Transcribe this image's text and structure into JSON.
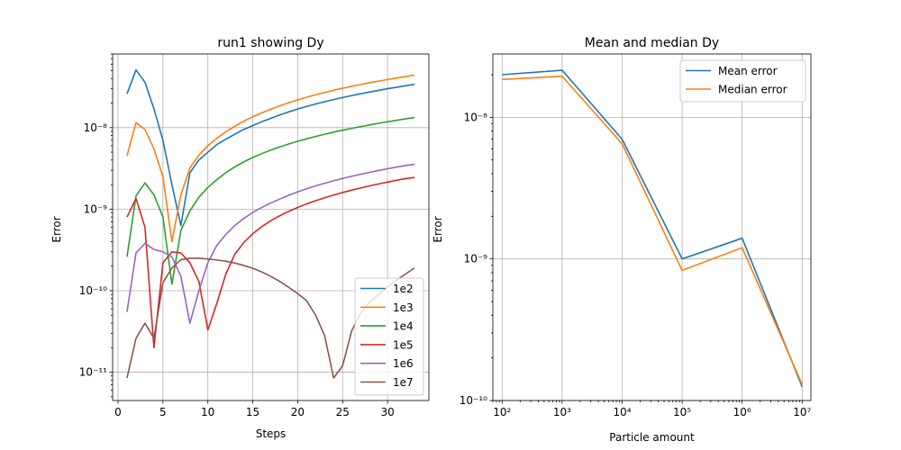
{
  "chart_data": [
    {
      "type": "line",
      "title": "run1 showing Dy",
      "xlabel": "Steps",
      "ylabel": "Error",
      "yscale": "log",
      "xlim": [
        -0.6,
        34.6
      ],
      "ylim": [
        4.5e-12,
        8e-08
      ],
      "xticks": [
        0,
        5,
        10,
        15,
        20,
        25,
        30
      ],
      "yticks": [
        1e-11,
        1e-10,
        1e-09,
        1e-08
      ],
      "ytick_labels": [
        "10⁻¹¹",
        "10⁻¹⁰",
        "10⁻⁹",
        "10⁻⁸"
      ],
      "grid": true,
      "legend_position": "lower-right",
      "x": [
        1,
        2,
        3,
        4,
        5,
        6,
        7,
        8,
        9,
        10,
        11,
        12,
        13,
        14,
        15,
        16,
        17,
        18,
        19,
        20,
        21,
        22,
        23,
        24,
        25,
        26,
        27,
        28,
        29,
        30,
        31,
        32,
        33
      ],
      "series": [
        {
          "name": "1e2",
          "color": "#1f77b4",
          "values": [
            2.6e-08,
            5.1e-08,
            3.6e-08,
            1.7e-08,
            7e-09,
            2e-09,
            6.3e-10,
            2.8e-09,
            4e-09,
            5e-09,
            6.2e-09,
            7.2e-09,
            8.3e-09,
            9.5e-09,
            1.06e-08,
            1.18e-08,
            1.3e-08,
            1.43e-08,
            1.56e-08,
            1.69e-08,
            1.82e-08,
            1.95e-08,
            2.08e-08,
            2.21e-08,
            2.34e-08,
            2.47e-08,
            2.6e-08,
            2.73e-08,
            2.86e-08,
            3e-08,
            3.13e-08,
            3.26e-08,
            3.4e-08
          ]
        },
        {
          "name": "1e3",
          "color": "#ff7f0e",
          "values": [
            4.5e-09,
            1.15e-08,
            9.5e-09,
            5.5e-09,
            2.5e-09,
            4e-10,
            1.5e-09,
            3.2e-09,
            4.6e-09,
            6e-09,
            7.4e-09,
            8.9e-09,
            1.04e-08,
            1.2e-08,
            1.36e-08,
            1.52e-08,
            1.68e-08,
            1.85e-08,
            2.02e-08,
            2.19e-08,
            2.36e-08,
            2.53e-08,
            2.7e-08,
            2.87e-08,
            3.04e-08,
            3.21e-08,
            3.38e-08,
            3.55e-08,
            3.72e-08,
            3.89e-08,
            4.06e-08,
            4.23e-08,
            4.4e-08
          ]
        },
        {
          "name": "1e4",
          "color": "#2ca02c",
          "values": [
            2.6e-10,
            1.45e-09,
            2.1e-09,
            1.5e-09,
            8e-10,
            1.2e-10,
            5.5e-10,
            9.5e-10,
            1.4e-09,
            1.85e-09,
            2.3e-09,
            2.8e-09,
            3.3e-09,
            3.8e-09,
            4.3e-09,
            4.8e-09,
            5.3e-09,
            5.8e-09,
            6.3e-09,
            6.8e-09,
            7.3e-09,
            7.8e-09,
            8.3e-09,
            8.8e-09,
            9.3e-09,
            9.8e-09,
            1.03e-08,
            1.08e-08,
            1.13e-08,
            1.18e-08,
            1.23e-08,
            1.28e-08,
            1.33e-08
          ]
        },
        {
          "name": "1e5",
          "color": "#d62728",
          "values": [
            8e-10,
            1.35e-09,
            6e-10,
            2e-11,
            2.2e-10,
            3e-10,
            2.9e-10,
            2.2e-10,
            1.3e-10,
            3.3e-11,
            7e-11,
            1.6e-10,
            2.8e-10,
            3.9e-10,
            5e-10,
            6.1e-10,
            7.2e-10,
            8.3e-10,
            9.4e-10,
            1.05e-09,
            1.16e-09,
            1.27e-09,
            1.38e-09,
            1.49e-09,
            1.6e-09,
            1.71e-09,
            1.82e-09,
            1.93e-09,
            2.04e-09,
            2.15e-09,
            2.26e-09,
            2.37e-09,
            2.45e-09
          ]
        },
        {
          "name": "1e6",
          "color": "#9467bd",
          "values": [
            5.5e-11,
            2.9e-10,
            3.8e-10,
            3.2e-10,
            3e-10,
            2.6e-10,
            1.5e-10,
            4e-11,
            1e-10,
            2.2e-10,
            3.6e-10,
            4.9e-10,
            6.3e-10,
            7.7e-10,
            9.1e-10,
            1.05e-09,
            1.19e-09,
            1.33e-09,
            1.48e-09,
            1.63e-09,
            1.78e-09,
            1.93e-09,
            2.08e-09,
            2.23e-09,
            2.38e-09,
            2.53e-09,
            2.68e-09,
            2.83e-09,
            2.98e-09,
            3.13e-09,
            3.28e-09,
            3.43e-09,
            3.55e-09
          ]
        },
        {
          "name": "1e7",
          "color": "#8c564b",
          "values": [
            8.5e-12,
            2.6e-11,
            4e-11,
            2.6e-11,
            1.25e-10,
            1.9e-10,
            2.4e-10,
            2.5e-10,
            2.5e-10,
            2.45e-10,
            2.38e-10,
            2.3e-10,
            2.18e-10,
            2.04e-10,
            1.88e-10,
            1.7e-10,
            1.5e-10,
            1.3e-10,
            1.1e-10,
            9.2e-11,
            7.5e-11,
            5e-11,
            2.8e-11,
            8.5e-12,
            1.2e-11,
            3.2e-11,
            5.3e-11,
            7.2e-11,
            9e-11,
            1.1e-10,
            1.35e-10,
            1.6e-10,
            1.9e-10
          ]
        }
      ]
    },
    {
      "type": "line",
      "title": "Mean and median Dy",
      "xlabel": "Particle amount",
      "ylabel": "Error",
      "xscale": "log",
      "yscale": "log",
      "xlim": [
        70,
        14000000
      ],
      "ylim": [
        1e-10,
        2.8e-08
      ],
      "xticks": [
        100,
        1000,
        10000,
        100000,
        1000000,
        10000000
      ],
      "xtick_labels": [
        "10²",
        "10³",
        "10⁴",
        "10⁵",
        "10⁶",
        "10⁷"
      ],
      "yticks": [
        1e-10,
        1e-09,
        1e-08
      ],
      "ytick_labels": [
        "10⁻¹⁰",
        "10⁻⁹",
        "10⁻⁸"
      ],
      "grid": true,
      "legend_position": "upper-right",
      "x": [
        100,
        1000,
        10000,
        100000,
        1000000,
        10000000
      ],
      "series": [
        {
          "name": "Mean error",
          "color": "#1f77b4",
          "values": [
            2e-08,
            2.15e-08,
            7e-09,
            1e-09,
            1.4e-09,
            1.25e-10
          ]
        },
        {
          "name": "Median error",
          "color": "#ff7f0e",
          "values": [
            1.85e-08,
            1.95e-08,
            6.5e-09,
            8.3e-10,
            1.2e-09,
            1.3e-10
          ]
        }
      ]
    }
  ]
}
